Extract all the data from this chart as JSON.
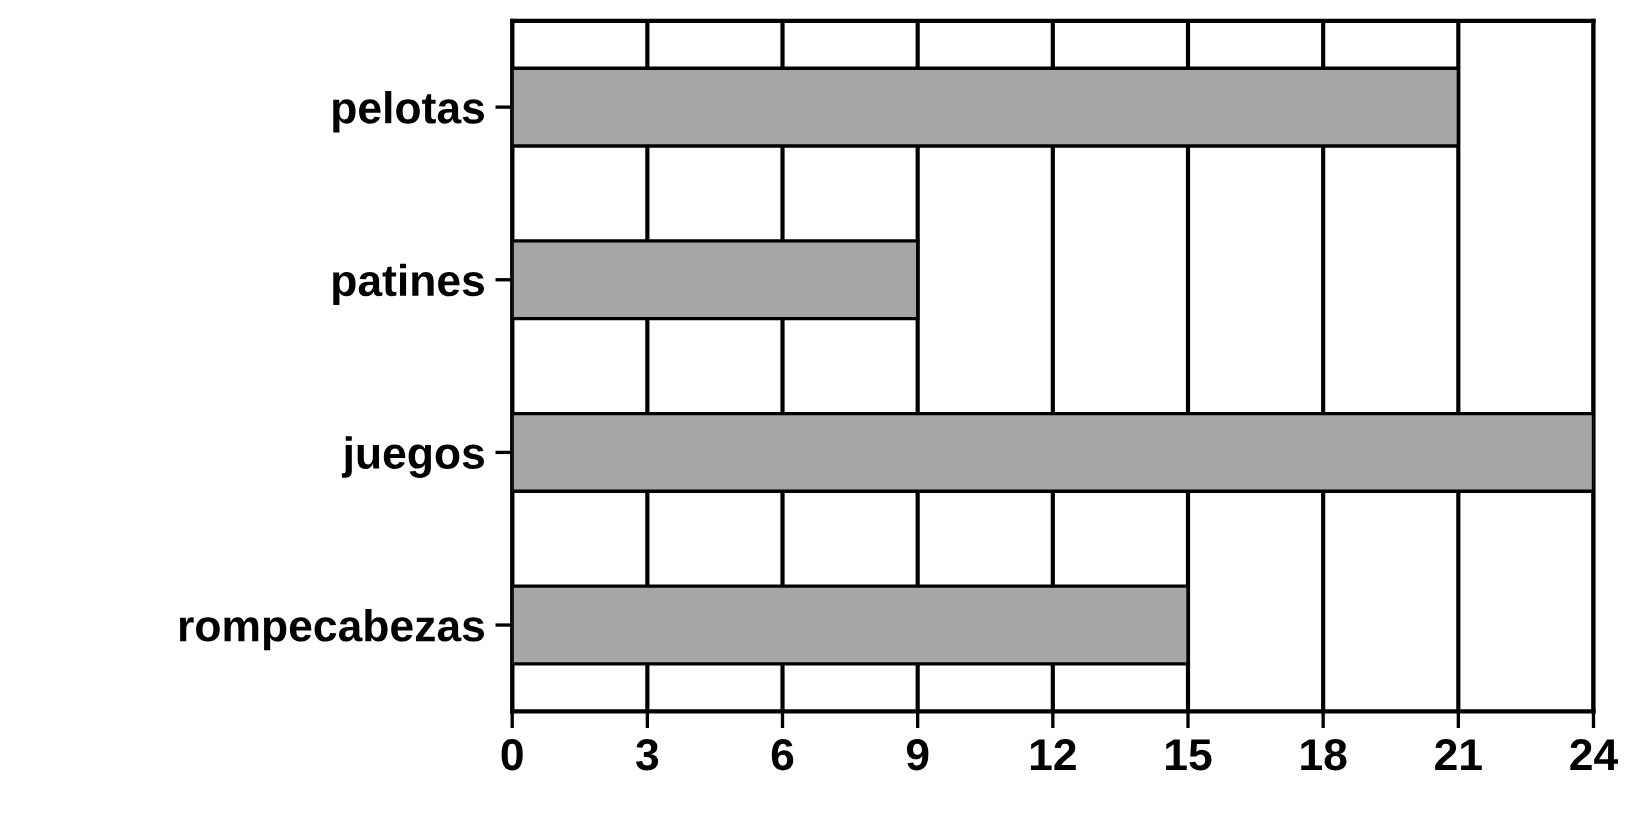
{
  "chart_data": {
    "type": "bar",
    "orientation": "horizontal",
    "categories": [
      "pelotas",
      "patines",
      "juegos",
      "rompecabezas"
    ],
    "values": [
      21,
      9,
      24,
      15
    ],
    "color": "#a6a6a6",
    "xlim": [
      0,
      24
    ],
    "xticks": [
      0,
      3,
      6,
      9,
      12,
      15,
      18,
      21,
      24
    ],
    "grid": "x"
  }
}
